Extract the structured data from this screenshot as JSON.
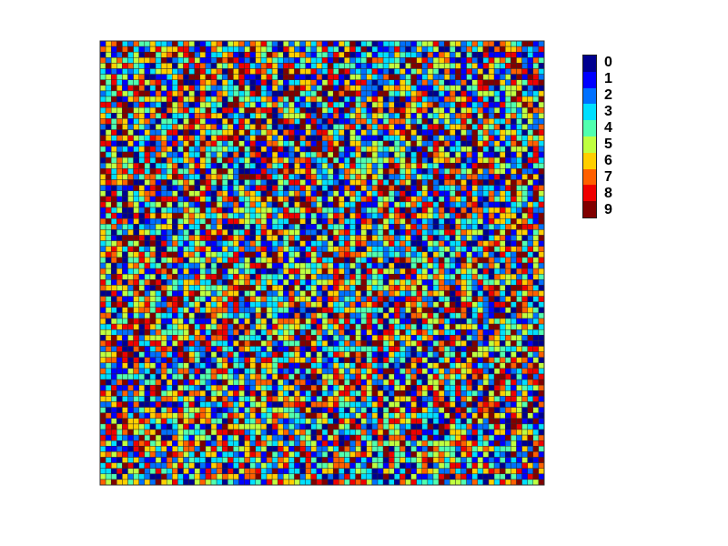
{
  "chart_data": {
    "type": "heatmap",
    "title": "",
    "xlabel": "",
    "ylabel": "",
    "grid": true,
    "rows": 80,
    "cols": 80,
    "value_range": [
      0,
      9
    ],
    "values_note": "",
    "colorbar": {
      "placement": "right",
      "ticks": [
        "0",
        "1",
        "2",
        "3",
        "4",
        "5",
        "6",
        "7",
        "8",
        "9"
      ],
      "colors": [
        "#00008f",
        "#0000ff",
        "#0070ff",
        "#00dfff",
        "#50ffaf",
        "#bfff40",
        "#ffcf00",
        "#ff6000",
        "#ef0000",
        "#800000"
      ]
    }
  }
}
